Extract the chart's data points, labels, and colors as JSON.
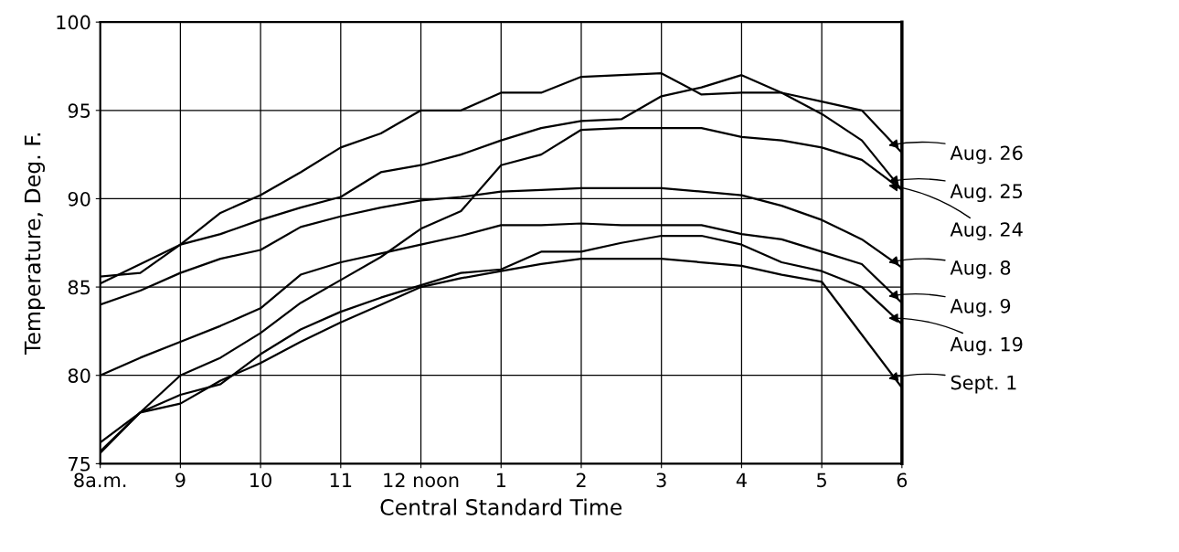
{
  "chart_data": {
    "type": "line",
    "xlabel": "Central Standard Time",
    "ylabel": "Temperature, Deg. F.",
    "categories": [
      "8a.m.",
      null,
      "9",
      null,
      "10",
      null,
      "11",
      null,
      "12 noon",
      null,
      "1",
      null,
      "2",
      null,
      "3",
      null,
      "4",
      null,
      "5",
      null,
      "6"
    ],
    "ylim": [
      75,
      100
    ],
    "yticks": [
      75,
      80,
      85,
      90,
      95,
      100
    ],
    "grid": true,
    "legend": "right",
    "marker": "none",
    "line_style": "solid",
    "series": [
      {
        "name": "Aug. 26",
        "color": "#000000",
        "values": [
          85.2,
          86.3,
          87.4,
          89.2,
          90.2,
          91.5,
          92.9,
          93.7,
          95.0,
          95.0,
          96.0,
          96.0,
          96.9,
          97.0,
          97.1,
          95.9,
          96.0,
          96.0,
          95.5,
          95.0,
          92.6
        ]
      },
      {
        "name": "Aug. 25",
        "color": "#000000",
        "values": [
          85.6,
          85.8,
          87.4,
          88.0,
          88.8,
          89.5,
          90.1,
          91.5,
          91.9,
          92.5,
          93.3,
          94.0,
          94.4,
          94.5,
          95.8,
          96.3,
          97.0,
          96.0,
          94.8,
          93.3,
          90.5
        ]
      },
      {
        "name": "Aug. 24",
        "color": "#000000",
        "values": [
          75.7,
          77.9,
          80.0,
          81.0,
          82.4,
          84.1,
          85.4,
          86.7,
          88.3,
          89.3,
          91.9,
          92.5,
          93.9,
          94.0,
          94.0,
          94.0,
          93.5,
          93.3,
          92.9,
          92.2,
          90.5
        ]
      },
      {
        "name": "Aug. 8",
        "color": "#000000",
        "values": [
          84.0,
          84.8,
          85.8,
          86.6,
          87.1,
          88.4,
          89.0,
          89.5,
          89.9,
          90.1,
          90.4,
          90.5,
          90.6,
          90.6,
          90.6,
          90.4,
          90.2,
          89.6,
          88.8,
          87.7,
          86.1
        ]
      },
      {
        "name": "Aug. 9",
        "color": "#000000",
        "values": [
          80.0,
          81.0,
          81.9,
          82.8,
          83.8,
          85.7,
          86.4,
          86.9,
          87.4,
          87.9,
          88.5,
          88.5,
          88.6,
          88.5,
          88.5,
          88.5,
          88.0,
          87.7,
          87.0,
          86.3,
          84.1
        ]
      },
      {
        "name": "Aug. 19",
        "color": "#000000",
        "values": [
          76.2,
          77.9,
          78.9,
          79.5,
          81.2,
          82.6,
          83.6,
          84.4,
          85.1,
          85.8,
          86.0,
          87.0,
          87.0,
          87.5,
          87.9,
          87.9,
          87.4,
          86.4,
          85.9,
          85.0,
          82.9
        ]
      },
      {
        "name": "Sept. 1",
        "color": "#000000",
        "values": [
          75.6,
          77.9,
          78.4,
          79.7,
          80.7,
          81.9,
          83.0,
          84.0,
          85.0,
          85.5,
          85.9,
          86.3,
          86.6,
          86.6,
          86.6,
          86.4,
          86.2,
          85.7,
          85.3,
          82.3,
          79.3
        ]
      }
    ]
  }
}
